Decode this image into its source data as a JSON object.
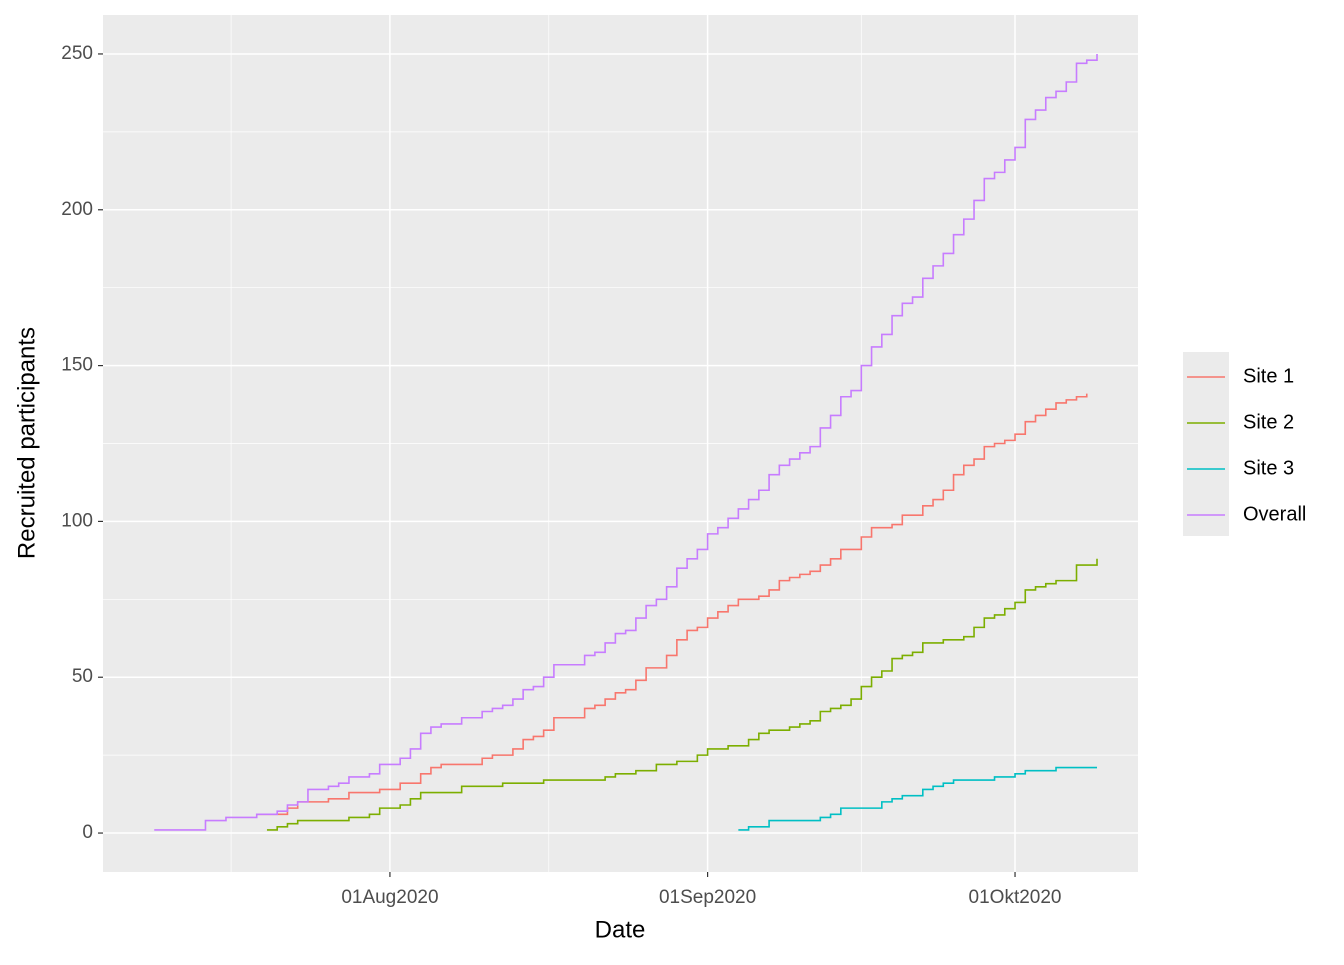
{
  "chart_data": {
    "type": "step-line",
    "x_label": "Date",
    "y_label": "Recruited participants",
    "xlim": [
      "2020-07-04",
      "2020-10-13"
    ],
    "xticks": [
      {
        "value": "2020-08-01",
        "label": "01Aug2020"
      },
      {
        "value": "2020-09-01",
        "label": "01Sep2020"
      },
      {
        "value": "2020-10-01",
        "label": "01Okt2020"
      }
    ],
    "ylim": [
      -12.5,
      262.5
    ],
    "yticks": [
      0,
      50,
      100,
      150,
      200,
      250
    ],
    "grid": true,
    "legend": "right",
    "series": [
      {
        "name": "Site 1",
        "color": "#F8766D",
        "x": [
          "2020-07-19",
          "2020-07-22",
          "2020-07-23",
          "2020-07-26",
          "2020-07-28",
          "2020-07-31",
          "2020-08-02",
          "2020-08-04",
          "2020-08-05",
          "2020-08-06",
          "2020-08-10",
          "2020-08-11",
          "2020-08-13",
          "2020-08-14",
          "2020-08-15",
          "2020-08-16",
          "2020-08-17",
          "2020-08-20",
          "2020-08-21",
          "2020-08-22",
          "2020-08-23",
          "2020-08-24",
          "2020-08-25",
          "2020-08-26",
          "2020-08-28",
          "2020-08-29",
          "2020-08-30",
          "2020-08-31",
          "2020-09-01",
          "2020-09-02",
          "2020-09-03",
          "2020-09-04",
          "2020-09-06",
          "2020-09-07",
          "2020-09-08",
          "2020-09-09",
          "2020-09-10",
          "2020-09-11",
          "2020-09-12",
          "2020-09-13",
          "2020-09-14",
          "2020-09-16",
          "2020-09-17",
          "2020-09-19",
          "2020-09-20",
          "2020-09-22",
          "2020-09-23",
          "2020-09-24",
          "2020-09-25",
          "2020-09-26",
          "2020-09-27",
          "2020-09-28",
          "2020-09-29",
          "2020-09-30",
          "2020-10-01",
          "2020-10-02",
          "2020-10-03",
          "2020-10-04",
          "2020-10-05",
          "2020-10-06",
          "2020-10-07",
          "2020-10-08"
        ],
        "values": [
          6,
          8,
          10,
          11,
          13,
          14,
          16,
          19,
          21,
          22,
          24,
          25,
          27,
          30,
          31,
          33,
          37,
          40,
          41,
          43,
          45,
          46,
          49,
          53,
          57,
          62,
          65,
          66,
          69,
          71,
          73,
          75,
          76,
          78,
          81,
          82,
          83,
          84,
          86,
          88,
          91,
          95,
          98,
          99,
          102,
          105,
          107,
          110,
          115,
          118,
          120,
          124,
          125,
          126,
          128,
          132,
          134,
          136,
          138,
          139,
          140,
          141
        ]
      },
      {
        "name": "Site 2",
        "color": "#7CAE00",
        "x": [
          "2020-07-20",
          "2020-07-21",
          "2020-07-22",
          "2020-07-23",
          "2020-07-28",
          "2020-07-30",
          "2020-07-31",
          "2020-08-02",
          "2020-08-03",
          "2020-08-04",
          "2020-08-08",
          "2020-08-12",
          "2020-08-16",
          "2020-08-22",
          "2020-08-23",
          "2020-08-25",
          "2020-08-27",
          "2020-08-29",
          "2020-08-31",
          "2020-09-01",
          "2020-09-03",
          "2020-09-05",
          "2020-09-06",
          "2020-09-07",
          "2020-09-09",
          "2020-09-10",
          "2020-09-11",
          "2020-09-12",
          "2020-09-13",
          "2020-09-14",
          "2020-09-15",
          "2020-09-16",
          "2020-09-17",
          "2020-09-18",
          "2020-09-19",
          "2020-09-20",
          "2020-09-21",
          "2020-09-22",
          "2020-09-24",
          "2020-09-26",
          "2020-09-27",
          "2020-09-28",
          "2020-09-29",
          "2020-09-30",
          "2020-10-01",
          "2020-10-02",
          "2020-10-03",
          "2020-10-04",
          "2020-10-05",
          "2020-10-07",
          "2020-10-09"
        ],
        "values": [
          1,
          2,
          3,
          4,
          5,
          6,
          8,
          9,
          11,
          13,
          15,
          16,
          17,
          18,
          19,
          20,
          22,
          23,
          25,
          27,
          28,
          30,
          32,
          33,
          34,
          35,
          36,
          39,
          40,
          41,
          43,
          47,
          50,
          52,
          56,
          57,
          58,
          61,
          62,
          63,
          66,
          69,
          70,
          72,
          74,
          78,
          79,
          80,
          81,
          86,
          88
        ]
      },
      {
        "name": "Site 3",
        "color": "#00BFC4",
        "x": [
          "2020-09-04",
          "2020-09-05",
          "2020-09-07",
          "2020-09-12",
          "2020-09-13",
          "2020-09-14",
          "2020-09-18",
          "2020-09-19",
          "2020-09-20",
          "2020-09-22",
          "2020-09-23",
          "2020-09-24",
          "2020-09-25",
          "2020-09-29",
          "2020-10-01",
          "2020-10-02",
          "2020-10-05",
          "2020-10-09"
        ],
        "values": [
          1,
          2,
          4,
          5,
          6,
          8,
          10,
          11,
          12,
          14,
          15,
          16,
          17,
          18,
          19,
          20,
          21,
          21
        ]
      },
      {
        "name": "Overall",
        "color": "#C77CFF",
        "x": [
          "2020-07-09",
          "2020-07-14",
          "2020-07-16",
          "2020-07-19",
          "2020-07-21",
          "2020-07-22",
          "2020-07-23",
          "2020-07-24",
          "2020-07-26",
          "2020-07-27",
          "2020-07-28",
          "2020-07-30",
          "2020-07-31",
          "2020-08-02",
          "2020-08-03",
          "2020-08-04",
          "2020-08-05",
          "2020-08-06",
          "2020-08-08",
          "2020-08-10",
          "2020-08-11",
          "2020-08-12",
          "2020-08-13",
          "2020-08-14",
          "2020-08-15",
          "2020-08-16",
          "2020-08-17",
          "2020-08-20",
          "2020-08-21",
          "2020-08-22",
          "2020-08-23",
          "2020-08-24",
          "2020-08-25",
          "2020-08-26",
          "2020-08-27",
          "2020-08-28",
          "2020-08-29",
          "2020-08-30",
          "2020-08-31",
          "2020-09-01",
          "2020-09-02",
          "2020-09-03",
          "2020-09-04",
          "2020-09-05",
          "2020-09-06",
          "2020-09-07",
          "2020-09-08",
          "2020-09-09",
          "2020-09-10",
          "2020-09-11",
          "2020-09-12",
          "2020-09-13",
          "2020-09-14",
          "2020-09-15",
          "2020-09-16",
          "2020-09-17",
          "2020-09-18",
          "2020-09-19",
          "2020-09-20",
          "2020-09-21",
          "2020-09-22",
          "2020-09-23",
          "2020-09-24",
          "2020-09-25",
          "2020-09-26",
          "2020-09-27",
          "2020-09-28",
          "2020-09-29",
          "2020-09-30",
          "2020-10-01",
          "2020-10-02",
          "2020-10-03",
          "2020-10-04",
          "2020-10-05",
          "2020-10-06",
          "2020-10-07",
          "2020-10-08",
          "2020-10-09"
        ],
        "values": [
          1,
          4,
          5,
          6,
          7,
          9,
          10,
          14,
          15,
          16,
          18,
          19,
          22,
          24,
          27,
          32,
          34,
          35,
          37,
          39,
          40,
          41,
          43,
          46,
          47,
          50,
          54,
          57,
          58,
          61,
          64,
          65,
          69,
          73,
          75,
          79,
          85,
          88,
          91,
          96,
          98,
          101,
          104,
          107,
          110,
          115,
          118,
          120,
          122,
          124,
          130,
          134,
          140,
          142,
          150,
          156,
          160,
          166,
          170,
          172,
          178,
          182,
          186,
          192,
          197,
          203,
          210,
          212,
          216,
          220,
          229,
          232,
          236,
          238,
          241,
          247,
          248,
          250
        ]
      }
    ]
  }
}
